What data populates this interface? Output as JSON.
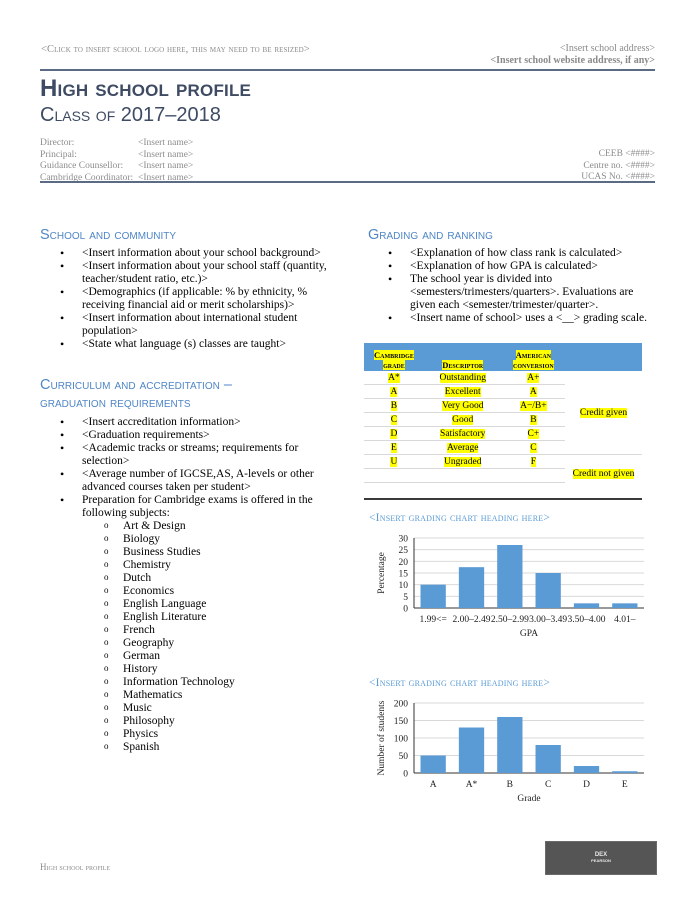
{
  "header": {
    "logo_placeholder": "<Click to insert school logo here, this may need to be resized>",
    "address": "<Insert school address>",
    "website": "<Insert school website address, if any>",
    "title": "High school profile",
    "subtitle": "Class of 2017–2018"
  },
  "staff": [
    {
      "label": "Director:",
      "value": "<Insert name>"
    },
    {
      "label": "Principal:",
      "value": "<Insert name>"
    },
    {
      "label": "Guidance Counsellor:",
      "value": "<Insert name>"
    },
    {
      "label": "Cambridge Coordinator:",
      "value": "<Insert name>"
    }
  ],
  "codes": [
    "CEEB <####>",
    "Centre no. <####>",
    "UCAS No. <####>"
  ],
  "school_community": {
    "heading": "School and community",
    "items": [
      "<Insert information about your school background>",
      "<Insert information about your school staff (quantity, teacher/student ratio, etc.)>",
      "<Demographics (if applicable: % by ethnicity, % receiving financial aid or merit scholarships)>",
      "<Insert information about international student population>",
      "<State what language (s) classes are taught>"
    ]
  },
  "curriculum": {
    "heading_line1": "Curriculum and accreditation –",
    "heading_line2": "graduation requirements",
    "items": [
      "<Insert accreditation information>",
      "<Graduation requirements>",
      "<Academic tracks or streams; requirements for selection>",
      "<Average number of IGCSE,AS, A-levels or other advanced courses taken per student>",
      "Preparation for Cambridge exams is offered in the following subjects:"
    ],
    "subjects": [
      "Art & Design",
      "Biology",
      "Business Studies",
      "Chemistry",
      "Dutch",
      "Economics",
      "English Language",
      "English Literature",
      "French",
      "Geography",
      "German",
      "History",
      "Information Technology",
      "Mathematics",
      "Music",
      "Philosophy",
      "Physics",
      "Spanish"
    ]
  },
  "grading": {
    "heading": "Grading and ranking",
    "items": [
      "<Explanation of how class rank is calculated>",
      "<Explanation of how GPA  is calculated>",
      "The school year is divided into <semesters/trimesters/quarters>. Evaluations are given each <semester/trimester/quarter>.",
      "<Insert name of school> uses a <__> grading scale."
    ]
  },
  "grade_table": {
    "headers": {
      "cambridge_1": "Cambridge",
      "cambridge_2": "grade",
      "descriptor": "Descriptor",
      "american_1": "American",
      "american_2": "conversion"
    },
    "rows": [
      {
        "grade": "A*",
        "descriptor": "Outstanding",
        "american": "A+"
      },
      {
        "grade": "A",
        "descriptor": "Excellent",
        "american": "A"
      },
      {
        "grade": "B",
        "descriptor": "Very Good",
        "american": "A−/B+"
      },
      {
        "grade": "C",
        "descriptor": "Good",
        "american": "B"
      },
      {
        "grade": "D",
        "descriptor": "Satisfactory",
        "american": "C+"
      },
      {
        "grade": "E",
        "descriptor": "Average",
        "american": "C"
      },
      {
        "grade": "U",
        "descriptor": "Ungraded",
        "american": "F"
      }
    ],
    "credit_given": "Credit given",
    "credit_not_given": "Credit not given",
    "highlight_color": "#ffff00",
    "header_color": "#5b9bd5"
  },
  "chart_data": [
    {
      "type": "bar",
      "title": "<Insert grading chart heading here>",
      "categories": [
        "1.99<=",
        "2.00–2.49",
        "2.50–2.99",
        "3.00–3.49",
        "3.50–4.00",
        "4.01–"
      ],
      "values": [
        10,
        17.5,
        27,
        15,
        2,
        2
      ],
      "xlabel": "GPA",
      "ylabel": "Percentage",
      "ylim": [
        0,
        30
      ],
      "yticks": [
        0,
        5,
        10,
        15,
        20,
        25,
        30
      ],
      "grid": true,
      "bar_color": "#5b9bd5"
    },
    {
      "type": "bar",
      "title": "<Insert grading chart heading here>",
      "categories": [
        "A",
        "A*",
        "B",
        "C",
        "D",
        "E"
      ],
      "values": [
        50,
        130,
        160,
        80,
        20,
        5
      ],
      "xlabel": "Grade",
      "ylabel": "Number of students",
      "ylim": [
        0,
        200
      ],
      "yticks": [
        0,
        50,
        100,
        150,
        200
      ],
      "grid": true,
      "bar_color": "#5b9bd5"
    }
  ],
  "footer": {
    "text": "High school profile",
    "logo_line1": "DEX",
    "logo_line2": "PEARSON"
  }
}
